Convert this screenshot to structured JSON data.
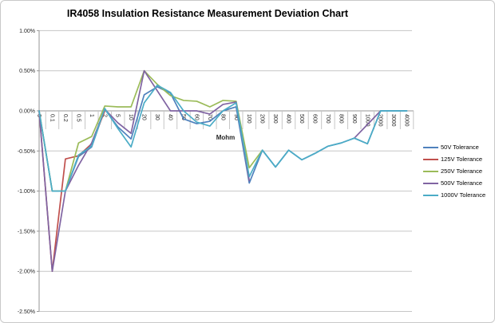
{
  "chart_data": {
    "type": "line",
    "title": "IR4058 Insulation Resistance Measurement Deviation Chart",
    "xlabel": "Mohm",
    "ylabel": "",
    "categories": [
      "0",
      "0.1",
      "0.2",
      "0.5",
      "1",
      "2",
      "5",
      "10",
      "20",
      "30",
      "40",
      "50",
      "60",
      "70",
      "80",
      "90",
      "100",
      "200",
      "300",
      "400",
      "500",
      "600",
      "700",
      "800",
      "900",
      "1000",
      "2000",
      "3000",
      "4000"
    ],
    "y_ticks": [
      "1.00%",
      "0.50%",
      "0.00%",
      "-0.50%",
      "-1.00%",
      "-1.50%",
      "-2.00%",
      "-2.50%"
    ],
    "ylim": [
      -2.5,
      1.0
    ],
    "grid": true,
    "legend_position": "right",
    "axis_colors": {
      "gridline": "#c6c6c6",
      "axis_line": "#969696"
    },
    "series": [
      {
        "name": "50V Tolerance",
        "color": "#4F81BD",
        "values": [
          0,
          -1.0,
          -1.0,
          -0.57,
          -0.45,
          0.02,
          -0.2,
          -0.35,
          0.2,
          0.3,
          0.22,
          -0.1,
          -0.16,
          -0.13,
          0.0,
          0.05,
          -0.9,
          -0.49,
          -0.7,
          -0.49,
          -0.61,
          -0.53,
          -0.44,
          -0.4,
          -0.34,
          -0.41,
          0.0,
          0.0,
          0.0
        ]
      },
      {
        "name": "125V Tolerance",
        "color": "#C0504D",
        "values": [
          0,
          -2.0,
          -0.6,
          -0.56,
          -0.41,
          0.0,
          null,
          null,
          null,
          null,
          null,
          null,
          null,
          null,
          null,
          null,
          null,
          null,
          null,
          null,
          null,
          null,
          null,
          null,
          null,
          null,
          null,
          null,
          null
        ]
      },
      {
        "name": "250V Tolerance",
        "color": "#9BBB59",
        "values": [
          0,
          -1.0,
          -1.0,
          -0.4,
          -0.32,
          0.06,
          0.05,
          0.05,
          0.5,
          0.33,
          0.19,
          0.13,
          0.12,
          0.05,
          0.13,
          0.12,
          -0.71,
          -0.49,
          null,
          null,
          null,
          null,
          null,
          null,
          null,
          null,
          null,
          null,
          null
        ]
      },
      {
        "name": "500V Tolerance",
        "color": "#8064A2",
        "values": [
          0,
          -2.0,
          -1.0,
          -0.68,
          -0.4,
          0.02,
          -0.15,
          -0.28,
          0.5,
          0.25,
          0.0,
          0.0,
          0.0,
          -0.04,
          0.08,
          0.11,
          -0.87,
          null,
          null,
          null,
          null,
          null,
          null,
          null,
          -0.34,
          -0.17,
          0.0,
          null,
          null
        ]
      },
      {
        "name": "1000V Tolerance",
        "color": "#4BACC6",
        "values": [
          0,
          -1.0,
          -1.0,
          -0.55,
          -0.44,
          0.03,
          -0.22,
          -0.45,
          0.1,
          0.32,
          0.23,
          0.0,
          -0.14,
          -0.19,
          0.0,
          0.1,
          -0.82,
          -0.49,
          -0.7,
          -0.49,
          -0.61,
          -0.53,
          -0.44,
          -0.4,
          -0.34,
          -0.41,
          0.0,
          0.0,
          0.0
        ]
      }
    ]
  }
}
